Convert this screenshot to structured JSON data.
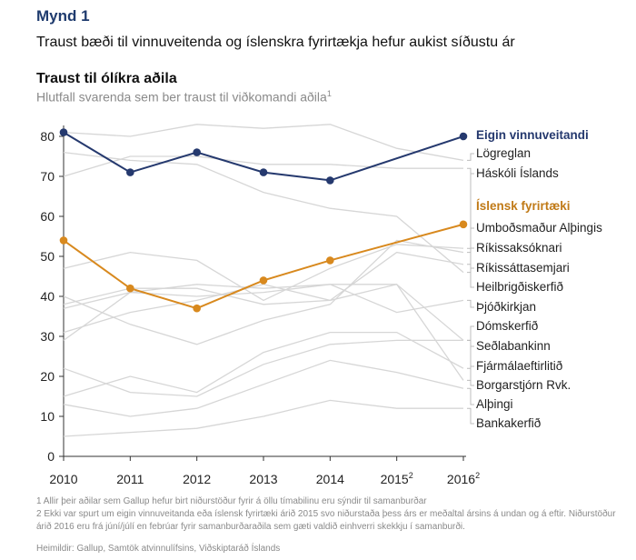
{
  "figure": {
    "label": "Mynd 1",
    "title": "Traust bæði til vinnuveitenda og íslenskra fyrirtækja hefur aukist síðustu ár"
  },
  "chart_data": {
    "type": "line",
    "title": "Traust til ólíkra aðila",
    "subtitle": "Hlutfall svarenda sem ber traust til viðkomandi aðila",
    "subtitle_note": "1",
    "x": [
      "2010",
      "2011",
      "2012",
      "2013",
      "2014",
      "2015",
      "2016"
    ],
    "x_notes": [
      "",
      "",
      "",
      "",
      "",
      "2",
      "2"
    ],
    "ylim": [
      0,
      80
    ],
    "yticks": [
      0,
      10,
      20,
      30,
      40,
      50,
      60,
      70,
      80
    ],
    "grid": false,
    "legend": "direct labels on right",
    "highlight_series": [
      {
        "name": "Eigin vinnuveitandi",
        "color": "#25396e",
        "values": [
          81,
          71,
          76,
          71,
          69,
          null,
          80
        ]
      },
      {
        "name": "Íslensk fyrirtæki",
        "color": "#d8891e",
        "values": [
          54,
          42,
          37,
          44,
          49,
          null,
          58
        ]
      }
    ],
    "background_series": [
      {
        "name": "Lögreglan",
        "values": [
          81,
          80,
          83,
          82,
          83,
          77,
          74
        ]
      },
      {
        "name": "Háskóli Íslands",
        "values": [
          76,
          74,
          73,
          66,
          62,
          60,
          46
        ]
      },
      {
        "name": "Umboðsmaður Alþingis",
        "values": [
          70,
          75,
          75,
          73,
          73,
          72,
          72
        ]
      },
      {
        "name": "Ríkissaksóknari",
        "values": [
          47,
          51,
          49,
          39,
          47,
          53,
          52
        ]
      },
      {
        "name": "Ríkissáttasemjari",
        "values": [
          38,
          42,
          42,
          38,
          39,
          51,
          48
        ]
      },
      {
        "name": "Heilbrigðiskerfið",
        "values": [
          40,
          33,
          28,
          34,
          38,
          54,
          51
        ]
      },
      {
        "name": "Þjóðkirkjan",
        "values": [
          37,
          41,
          43,
          42,
          43,
          36,
          39
        ]
      },
      {
        "name": "Dómskerfið",
        "values": [
          29,
          41,
          40,
          41,
          43,
          43,
          19
        ]
      },
      {
        "name": "Seðlabankinn",
        "values": [
          31,
          36,
          39,
          43,
          39,
          43,
          29
        ]
      },
      {
        "name": "Fjármálaeftirlitið",
        "values": [
          22,
          16,
          15,
          23,
          28,
          29,
          29
        ]
      },
      {
        "name": "Borgarstjórn Rvk.",
        "values": [
          15,
          20,
          16,
          26,
          31,
          31,
          22
        ]
      },
      {
        "name": "Alþingi",
        "values": [
          13,
          10,
          12,
          18,
          24,
          21,
          17
        ]
      },
      {
        "name": "Bankakerfið",
        "values": [
          5,
          6,
          7,
          10,
          14,
          12,
          12
        ]
      }
    ],
    "right_labels": [
      {
        "text": "Eigin vinnuveitandi",
        "color": "#25396e",
        "bold": true
      },
      {
        "text": "Lögreglan"
      },
      {
        "text": "Háskóli Íslands"
      },
      {
        "text": "Íslensk fyrirtæki",
        "color": "#c07a17",
        "bold": true
      },
      {
        "text": "Umboðsmaður Alþingis"
      },
      {
        "text": "Ríkissaksóknari"
      },
      {
        "text": "Ríkissáttasemjari"
      },
      {
        "text": "Heilbrigðiskerfið"
      },
      {
        "text": "Þjóðkirkjan"
      },
      {
        "text": "Dómskerfið"
      },
      {
        "text": "Seðlabankinn"
      },
      {
        "text": "Fjármálaeftirlitið"
      },
      {
        "text": "Borgarstjórn Rvk."
      },
      {
        "text": "Alþingi"
      },
      {
        "text": "Bankakerfið"
      }
    ]
  },
  "footnotes": [
    "1 Allir þeir aðilar sem Gallup hefur birt niðurstöður fyrir á öllu tímabilinu eru sýndir til samanburðar",
    "2 Ekki var spurt um eigin vinnuveitanda eða íslensk fyrirtæki árið 2015 svo niðurstaða þess árs er meðaltal ársins á undan og á eftir. Niðurstöður árið 2016 eru frá júní/júlí en febrúar fyrir samanburðaraðila sem gæti valdið einhverri skekkju í samanburði."
  ],
  "source": "Heimildir: Gallup, Samtök atvinnulífsins, Viðskiptaráð Íslands"
}
